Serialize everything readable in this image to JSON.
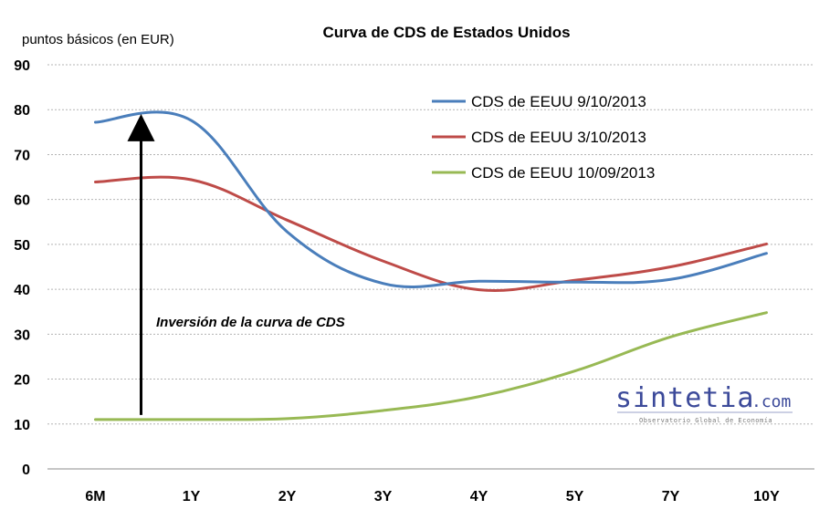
{
  "chart_data": {
    "type": "line",
    "title": "Curva de CDS de Estados Unidos",
    "ylabel": "puntos básicos (en EUR)",
    "xlabel": "",
    "categories": [
      "6M",
      "1Y",
      "2Y",
      "3Y",
      "4Y",
      "5Y",
      "7Y",
      "10Y"
    ],
    "ylim": [
      0,
      90
    ],
    "yticks": [
      0,
      10,
      20,
      30,
      40,
      50,
      60,
      70,
      80,
      90
    ],
    "grid": true,
    "legend_position": "top-right",
    "series": [
      {
        "name": "CDS de EEUU 9/10/2013",
        "color": "#4a7ebb",
        "values": [
          77.2,
          77.6,
          52.8,
          41.3,
          41.8,
          41.6,
          42.2,
          48.0
        ]
      },
      {
        "name": "CDS de EEUU 3/10/2013",
        "color": "#be4b48",
        "values": [
          63.9,
          64.4,
          55.4,
          46.3,
          39.9,
          42.0,
          45.0,
          50.1
        ]
      },
      {
        "name": "CDS de EEUU 10/09/2013",
        "color": "#98b954",
        "values": [
          11.0,
          11.0,
          11.2,
          13.0,
          16.1,
          21.8,
          29.4,
          34.8
        ]
      }
    ],
    "annotation": {
      "text": "Inversión de la curva de CDS",
      "arrow_from": 12,
      "arrow_to": 76,
      "category": "6M"
    }
  },
  "watermark": {
    "main": "sintetia",
    "suffix": ".com",
    "tagline": "Observatorio Global de Economía"
  }
}
